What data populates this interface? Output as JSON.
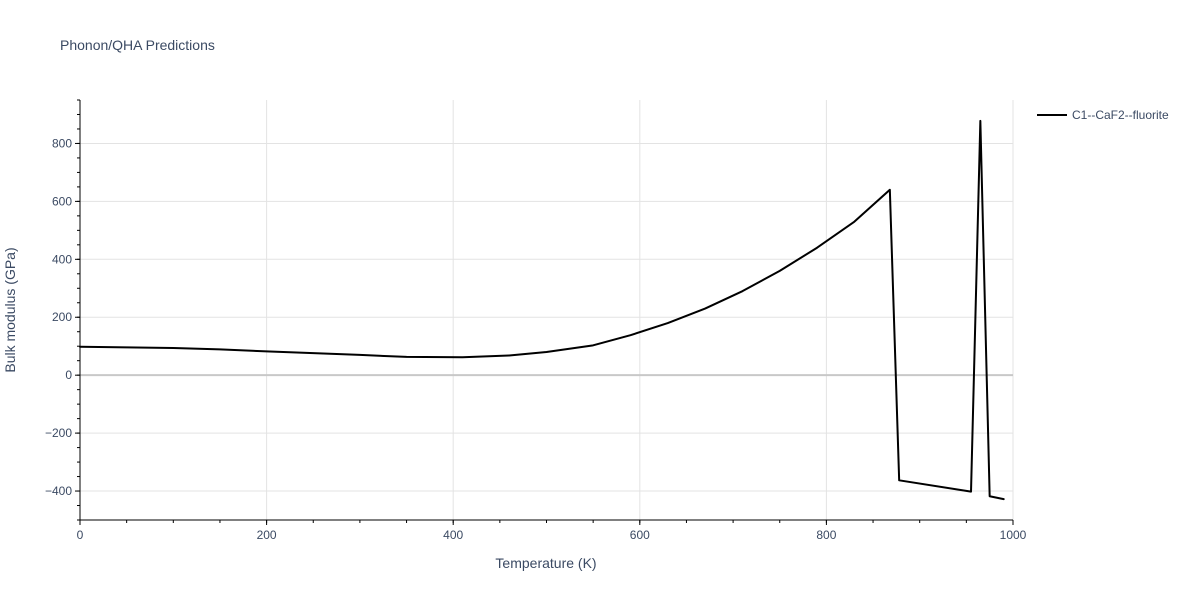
{
  "chart_data": {
    "type": "line",
    "title": "Phonon/QHA Predictions",
    "xlabel": "Temperature (K)",
    "ylabel": "Bulk modulus (GPa)",
    "xlim": [
      0,
      1000
    ],
    "ylim": [
      -500,
      950
    ],
    "x_ticks": [
      0,
      200,
      400,
      600,
      800,
      1000
    ],
    "y_ticks": [
      -400,
      -200,
      0,
      200,
      400,
      600,
      800
    ],
    "x_tick_labels": [
      "0",
      "200",
      "400",
      "600",
      "800",
      "1000"
    ],
    "y_tick_labels": [
      "−400",
      "−200",
      "0",
      "200",
      "400",
      "600",
      "800"
    ],
    "grid": true,
    "legend_position": "top-right",
    "series": [
      {
        "name": "C1--CaF2--fluorite",
        "color": "#000000",
        "x": [
          0,
          50,
          100,
          150,
          200,
          250,
          300,
          350,
          410,
          460,
          500,
          550,
          590,
          630,
          670,
          710,
          750,
          790,
          830,
          868,
          878,
          955,
          965,
          975,
          990
        ],
        "y": [
          98,
          96,
          94,
          89,
          82,
          76,
          70,
          63,
          62,
          68,
          80,
          103,
          138,
          180,
          230,
          290,
          360,
          440,
          530,
          640,
          -363,
          -402,
          878,
          -418,
          -428
        ]
      }
    ]
  }
}
